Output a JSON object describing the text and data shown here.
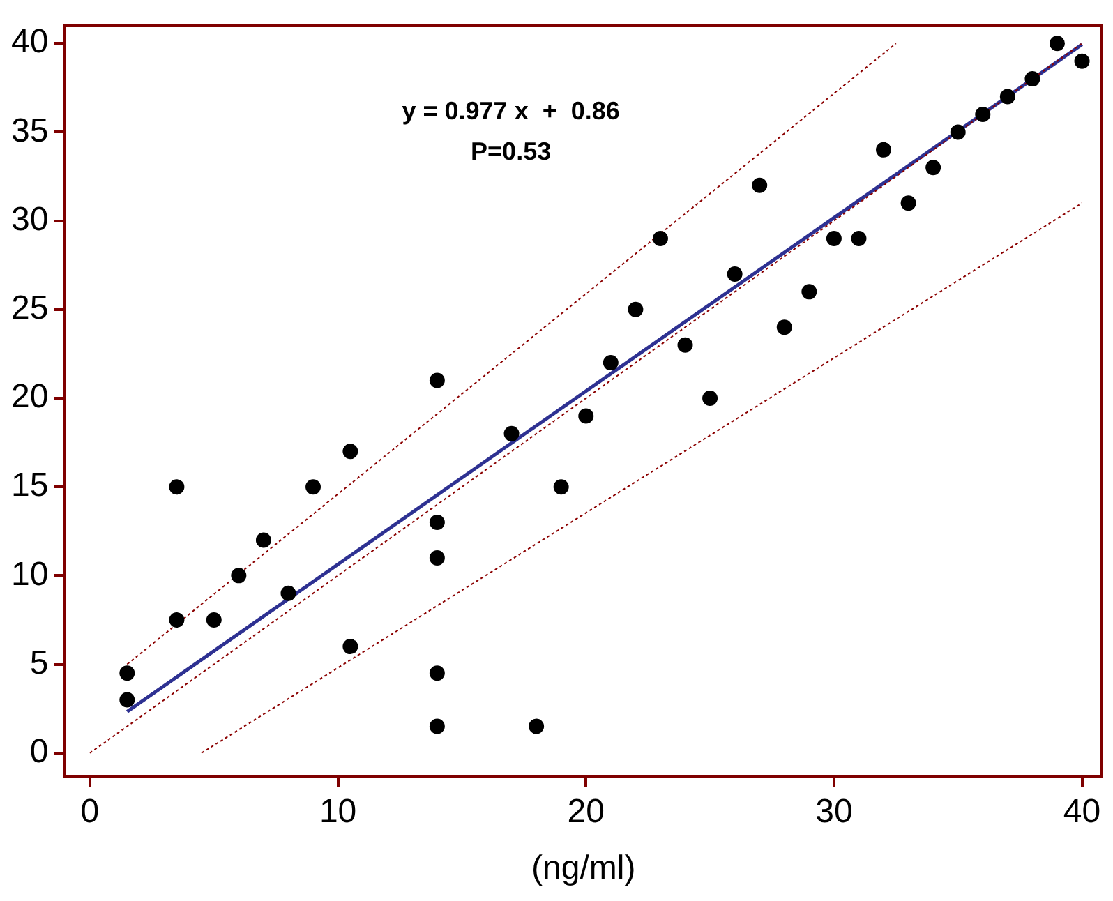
{
  "chart_data": {
    "type": "scatter",
    "xlabel": "(ng/ml)",
    "xlim": [
      -1,
      40.8
    ],
    "ylim": [
      -1.3,
      41
    ],
    "xticks": [
      0,
      10,
      20,
      30,
      40
    ],
    "yticks": [
      0,
      5,
      10,
      15,
      20,
      25,
      30,
      35,
      40
    ],
    "grid": false,
    "legend": false,
    "annotations": [
      "y = 0.977 x  +  0.86",
      "P=0.53"
    ],
    "series": [
      {
        "type": "scatter",
        "color": "#000000",
        "marker": "circle",
        "x": [
          1.5,
          1.5,
          3.5,
          3.5,
          5,
          6,
          7,
          8,
          9,
          10.5,
          10.5,
          14,
          14,
          14,
          14,
          14,
          17,
          18,
          19,
          20,
          21,
          22,
          23,
          24,
          25,
          26,
          27,
          28,
          29,
          30,
          31,
          32,
          33,
          34,
          35,
          36,
          37,
          38,
          39,
          40
        ],
        "values": [
          4.5,
          3,
          15,
          7.5,
          7.5,
          10,
          12,
          9,
          15,
          17,
          6,
          21,
          13,
          11,
          4.5,
          1.5,
          18,
          1.5,
          15,
          19,
          22,
          25,
          29,
          23,
          20,
          27,
          32,
          24,
          26,
          29,
          29,
          34,
          31,
          33,
          35,
          36,
          37,
          38,
          40,
          39
        ]
      },
      {
        "type": "line",
        "color": "#8b0000",
        "line_style": "dotted",
        "marker": "none",
        "x": [
          0,
          40
        ],
        "values": [
          0,
          40
        ]
      },
      {
        "type": "line",
        "color": "#8b0000",
        "line_style": "dotted",
        "marker": "none",
        "x": [
          1.5,
          32.5
        ],
        "values": [
          5,
          40
        ]
      },
      {
        "type": "line",
        "color": "#8b0000",
        "line_style": "dotted",
        "marker": "none",
        "x": [
          4.5,
          40
        ],
        "values": [
          0,
          31
        ]
      },
      {
        "type": "line",
        "color": "#2e3192",
        "line_style": "solid",
        "marker": "none",
        "x": [
          1.5,
          40
        ],
        "values": [
          2.33,
          39.94
        ]
      }
    ]
  }
}
